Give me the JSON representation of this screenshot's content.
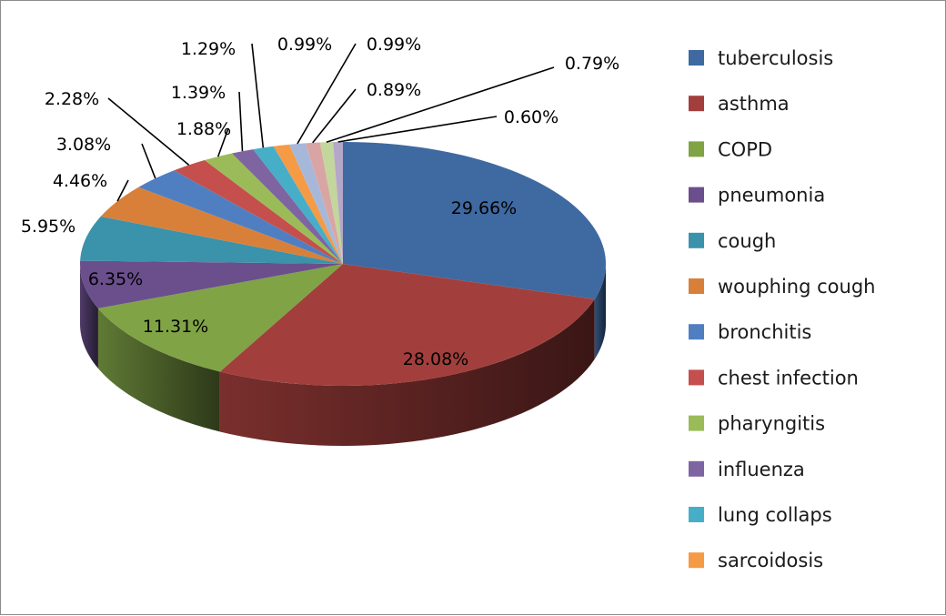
{
  "chart_data": {
    "type": "pie",
    "style": "3d-exploded-none",
    "title": "",
    "categories": [
      "tuberculosis",
      "asthma",
      "COPD",
      "pneumonia",
      "cough",
      "wouphing cough",
      "bronchitis",
      "chest infection",
      "pharyngitis",
      "influenza",
      "lung collaps",
      "sarcoidosis",
      "",
      "",
      "",
      ""
    ],
    "values": [
      29.66,
      28.08,
      11.31,
      6.35,
      5.95,
      4.46,
      3.08,
      2.28,
      1.88,
      1.39,
      1.29,
      0.99,
      0.99,
      0.89,
      0.79,
      0.6
    ],
    "labels": [
      "29.66%",
      "28.08%",
      "11.31%",
      "6.35%",
      "5.95%",
      "4.46%",
      "3.08%",
      "2.28%",
      "1.88%",
      "1.39%",
      "1.29%",
      "0.99%",
      "0.99%",
      "0.89%",
      "0.79%",
      "0.60%"
    ],
    "colors": [
      "#3f69a1",
      "#a23f3c",
      "#80a346",
      "#6b4f8c",
      "#3a93aa",
      "#d8803a",
      "#4f7fc1",
      "#c44f4c",
      "#9bbb59",
      "#7f64a2",
      "#47aec8",
      "#f59a45",
      "#a6b8d9",
      "#d9a5a4",
      "#c3d69b",
      "#b4a7c9"
    ],
    "legend": {
      "placement": "right",
      "entries": [
        "tuberculosis",
        "asthma",
        "COPD",
        "pneumonia",
        "cough",
        "wouphing cough",
        "bronchitis",
        "chest infection",
        "pharyngitis",
        "influenza",
        "lung collaps",
        "sarcoidosis"
      ]
    }
  }
}
